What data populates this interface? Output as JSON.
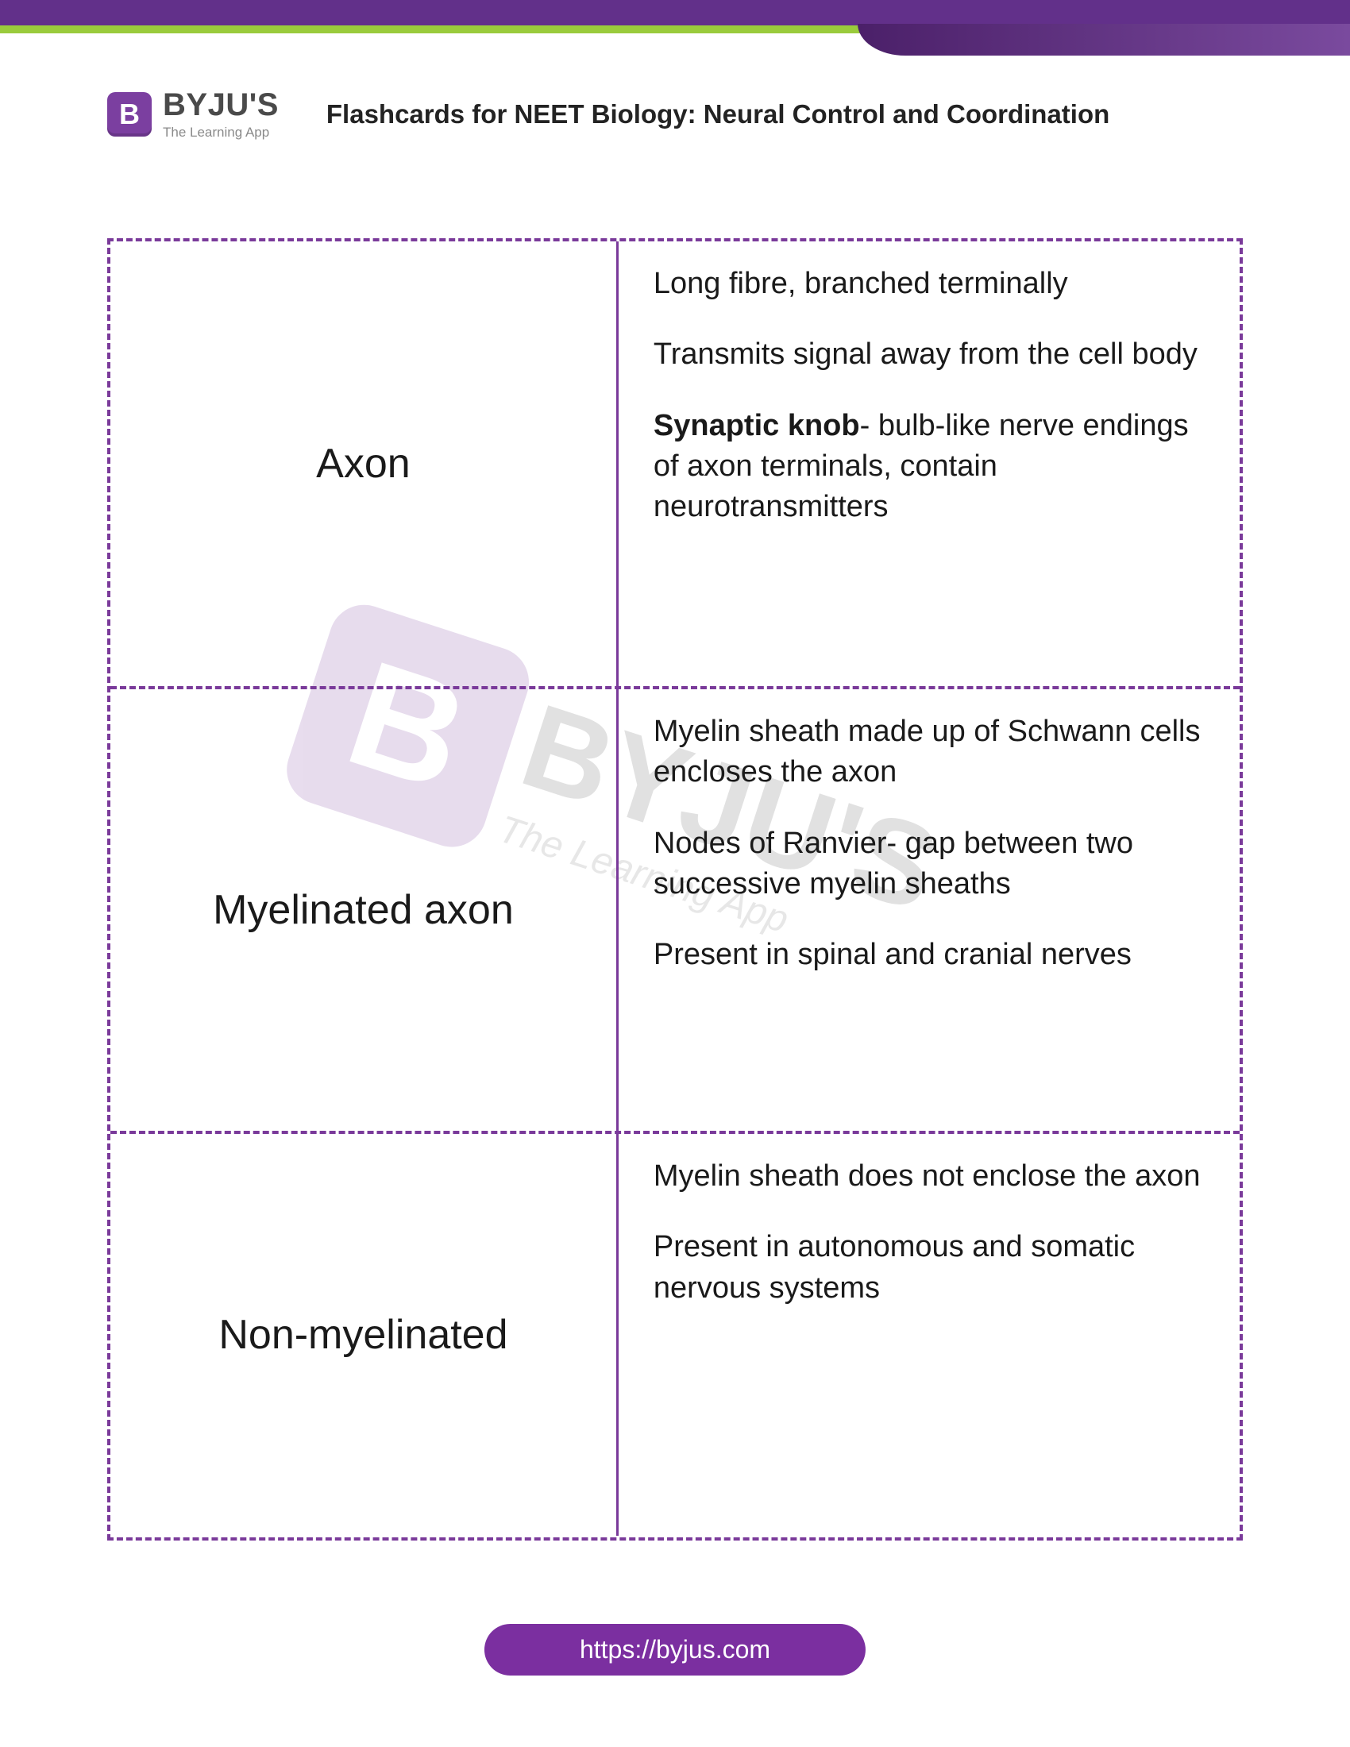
{
  "colors": {
    "purple": "#7b2fa0",
    "purple_dark": "#62308a",
    "green": "#9acb3c",
    "dash_border": "#7a3a9a",
    "text": "#1a1a1a",
    "muted": "#8a8a8a",
    "white": "#ffffff"
  },
  "logo": {
    "badge_letter": "B",
    "brand": "BYJU'S",
    "tagline": "The Learning App"
  },
  "page_title": "Flashcards for NEET Biology: Neural Control and Coordination",
  "watermark": {
    "badge_letter": "B",
    "brand": "BYJU'S",
    "tagline": "The Learning App"
  },
  "table": {
    "rows": [
      {
        "term": "Axon",
        "para1": "Long fibre, branched terminally",
        "para2": "Transmits signal away from the cell body",
        "para3_bold": "Synaptic knob",
        "para3_rest": "- bulb-like nerve endings of axon terminals, contain neurotransmitters"
      },
      {
        "term": "Myelinated axon",
        "para1": "Myelin sheath made up of Schwann cells encloses the axon",
        "para2": "Nodes of Ranvier- gap between two successive myelin sheaths",
        "para3": "Present in spinal and cranial nerves"
      },
      {
        "term": "Non-myelinated",
        "para1": "Myelin sheath does not enclose the axon",
        "para2": "Present in autonomous and somatic nervous systems"
      }
    ]
  },
  "footer_url": "https://byjus.com"
}
